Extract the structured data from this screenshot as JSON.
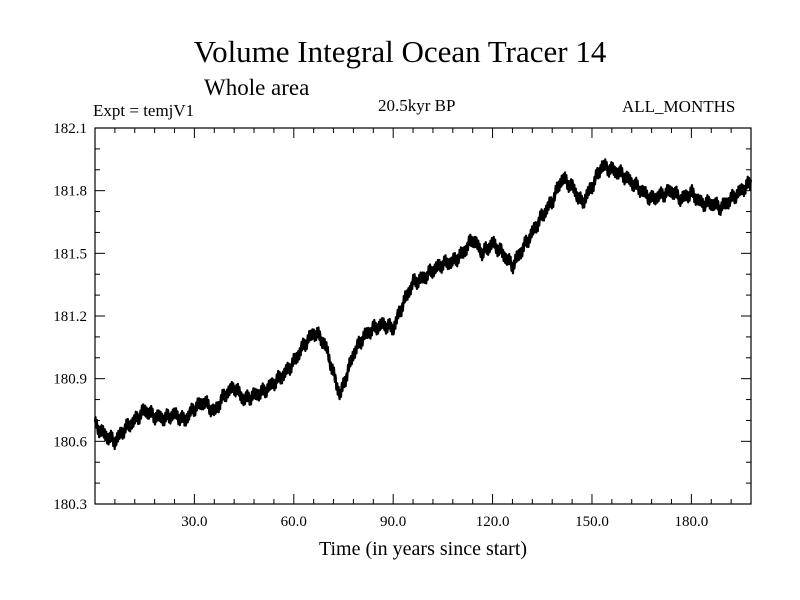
{
  "header": {
    "title": "Volume Integral Ocean Tracer 14",
    "subtitle": "Whole area",
    "expt": "Expt = temjV1",
    "period": "20.5kyr BP",
    "months": "ALL_MONTHS"
  },
  "chart_data": {
    "type": "line",
    "title": "Volume Integral Ocean Tracer 14",
    "subtitle": "Whole area",
    "xlabel": "Time (in years since start)",
    "ylabel": "",
    "xlim": [
      0,
      198
    ],
    "ylim": [
      180.3,
      182.1
    ],
    "xticks": [
      30,
      60,
      90,
      120,
      150,
      180
    ],
    "xtick_labels": [
      "30.0",
      "60.0",
      "90.0",
      "120.0",
      "150.0",
      "180.0"
    ],
    "yticks": [
      180.3,
      180.6,
      180.9,
      181.2,
      181.5,
      181.8,
      182.1
    ],
    "ytick_labels": [
      "180.3",
      "180.6",
      "180.9",
      "181.2",
      "181.5",
      "181.8",
      "182.1"
    ],
    "grid": false,
    "line_color": "#000000",
    "series": [
      {
        "x": [
          0,
          3,
          6,
          9,
          12,
          15,
          18,
          21,
          24,
          27,
          30,
          33,
          36,
          39,
          42,
          45,
          48,
          51,
          54,
          57,
          60,
          63,
          66,
          68,
          70,
          72,
          74,
          76,
          78,
          81,
          84,
          87,
          90,
          93,
          96,
          99,
          102,
          105,
          108,
          111,
          114,
          117,
          120,
          123,
          126,
          129,
          132,
          135,
          138,
          141,
          144,
          147,
          150,
          153,
          156,
          159,
          162,
          165,
          168,
          171,
          174,
          177,
          180,
          183,
          186,
          189,
          192,
          195,
          198
        ],
        "y": [
          180.68,
          180.63,
          180.6,
          180.66,
          180.7,
          180.75,
          180.72,
          180.71,
          180.73,
          180.7,
          180.76,
          180.79,
          180.74,
          180.82,
          180.86,
          180.8,
          180.82,
          180.84,
          180.88,
          180.92,
          180.98,
          181.06,
          181.12,
          181.1,
          181.04,
          180.92,
          180.82,
          180.92,
          181.02,
          181.1,
          181.14,
          181.16,
          181.14,
          181.26,
          181.36,
          181.38,
          181.42,
          181.45,
          181.46,
          181.5,
          181.57,
          181.5,
          181.55,
          181.5,
          181.44,
          181.52,
          181.6,
          181.68,
          181.75,
          181.86,
          181.82,
          181.74,
          181.82,
          181.92,
          181.9,
          181.88,
          181.84,
          181.8,
          181.76,
          181.78,
          181.8,
          181.76,
          181.79,
          181.74,
          181.74,
          181.72,
          181.76,
          181.8,
          181.84
        ]
      }
    ]
  }
}
